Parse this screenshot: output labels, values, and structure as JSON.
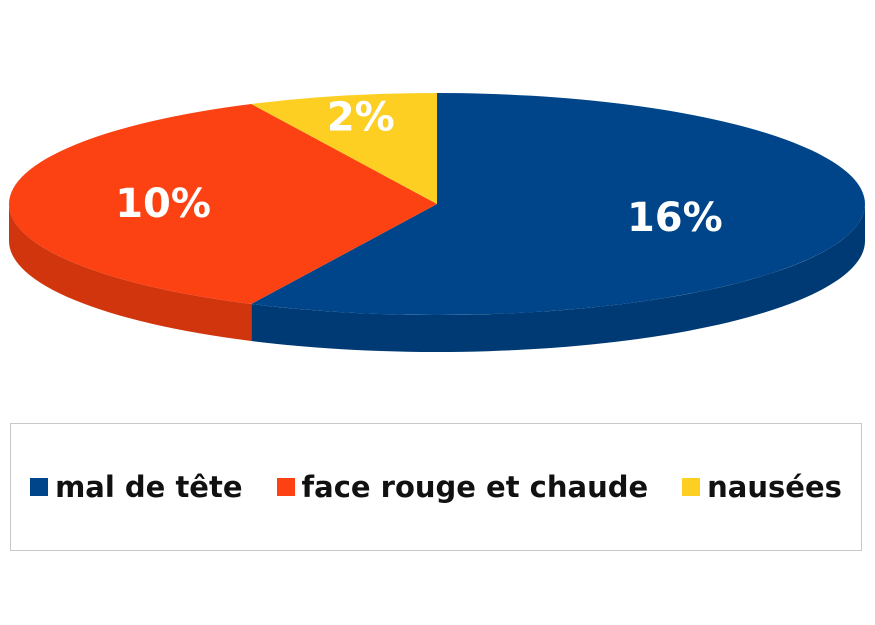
{
  "chart_data": {
    "type": "pie",
    "title": "",
    "slices": [
      {
        "label": "mal de tête",
        "value": 16,
        "display": "16%",
        "color": "#004589",
        "side_color": "#003a74"
      },
      {
        "label": "face rouge et chaude",
        "value": 10,
        "display": "10%",
        "color": "#fc4212",
        "side_color": "#d1350d"
      },
      {
        "label": "nausées",
        "value": 2,
        "display": "2%",
        "color": "#fccf22",
        "side_color": "#d4ab12"
      }
    ],
    "legend_position": "bottom"
  }
}
